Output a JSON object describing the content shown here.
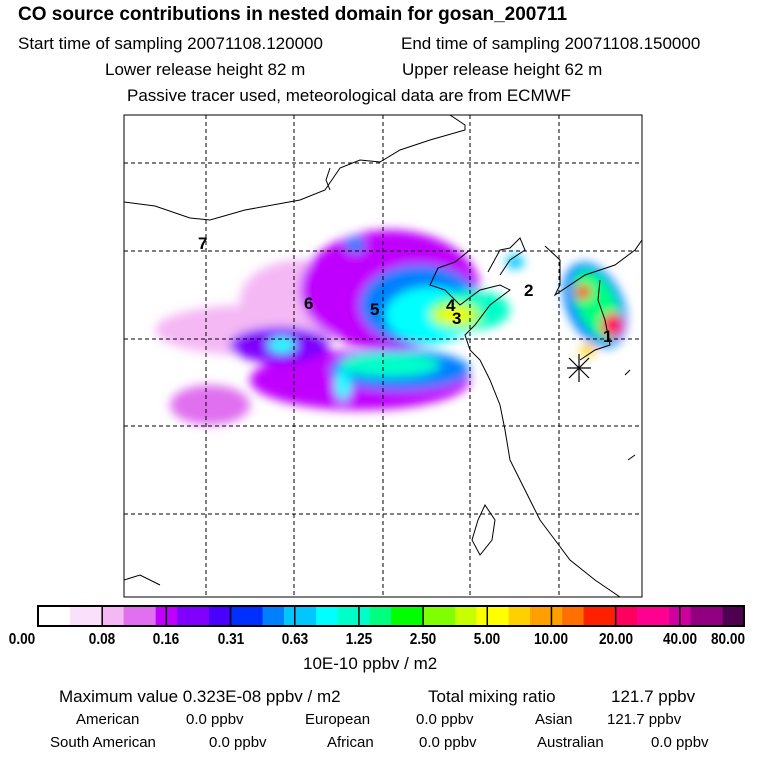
{
  "header": {
    "title": "CO  source contributions in nested domain for gosan_200711",
    "start_label": "Start time of sampling 20071108.120000",
    "end_label": "End time of sampling 20071108.150000",
    "lower_label": "Lower release height   82 m",
    "upper_label": "Upper release height   62 m",
    "note": "Passive tracer used, meteorological data are from ECMWF"
  },
  "chart_data": {
    "type": "heatmap",
    "title": "CO  source contributions in nested domain for gosan_200711",
    "map_labels": [
      "1",
      "2",
      "3",
      "4",
      "5",
      "6",
      "7"
    ],
    "receptor_marker": "asterisk (Gosan)",
    "colorbar": {
      "ticks": [
        "0.00",
        "0.08",
        "0.16",
        "0.31",
        "0.63",
        "1.25",
        "2.50",
        "5.00",
        "10.00",
        "20.00",
        "40.00",
        "80.00"
      ],
      "unit": "10E-10 ppbv / m2",
      "colors": [
        "#ffffff",
        "#fbe0fb",
        "#f4b8f4",
        "#e070f0",
        "#c000ff",
        "#8000ff",
        "#4a00ff",
        "#0030ff",
        "#0080ff",
        "#00c8ff",
        "#00ffff",
        "#00ffc8",
        "#00ff80",
        "#00ff00",
        "#80ff00",
        "#c8ff00",
        "#ffff00",
        "#ffd000",
        "#ffa000",
        "#ff7000",
        "#ff2000",
        "#ff0060",
        "#ff0090",
        "#d000a0",
        "#900080",
        "#500050"
      ]
    }
  },
  "footer": {
    "max_label": "Maximum value  0.323E-08 ppbv / m2",
    "total_label": "Total mixing ratio",
    "total_value": "121.7 ppbv",
    "regions": [
      {
        "name": "American",
        "value": "0.0 ppbv"
      },
      {
        "name": "European",
        "value": "0.0 ppbv"
      },
      {
        "name": "Asian",
        "value": "121.7 ppbv"
      },
      {
        "name": "South American",
        "value": "0.0 ppbv"
      },
      {
        "name": "African",
        "value": "0.0 ppbv"
      },
      {
        "name": "Australian",
        "value": "0.0 ppbv"
      }
    ]
  }
}
